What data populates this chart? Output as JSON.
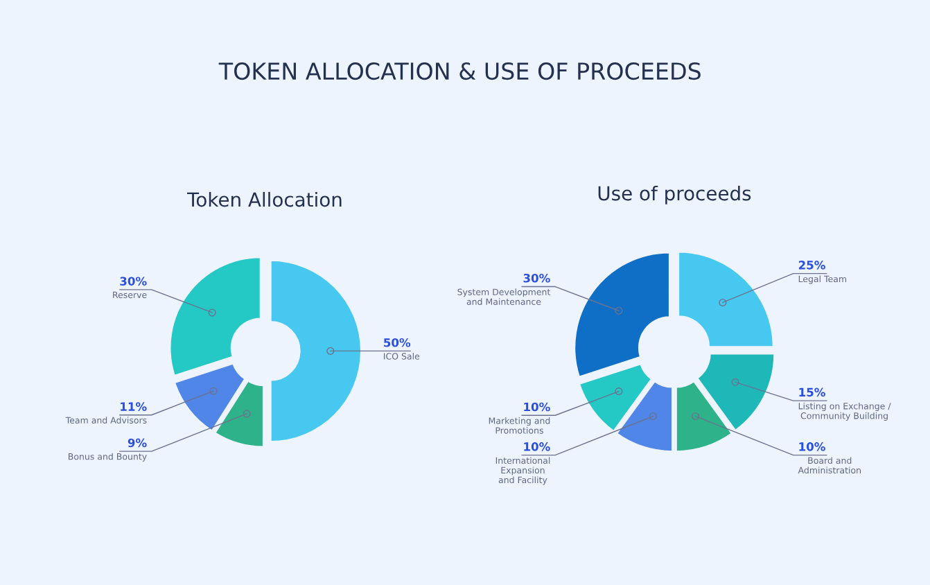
{
  "chart_data": [
    {
      "type": "donut",
      "title": "Token Allocation",
      "annotations": [
        "TOKEN ALLOCATION & USE OF PROCEEDS"
      ],
      "categories": [
        "ICO Sale",
        "Bonus and Bounty",
        "Team and Advisors",
        "Reserve"
      ],
      "values": [
        50,
        9,
        11,
        30
      ],
      "value_labels": [
        "50%",
        "9%",
        "11%",
        "30%"
      ],
      "colors": [
        "#46c8f0",
        "#2db28a",
        "#4f86e8",
        "#24c9c6"
      ]
    },
    {
      "type": "donut",
      "title": "Use of proceeds",
      "categories": [
        "Legal Team",
        "Listing on Exchange /\nCommunity Building",
        "Board and\nAdministration",
        "International\nExpansion\nand Facility",
        "Marketing and\nPromotions",
        "System Development\nand Maintenance"
      ],
      "values": [
        25,
        15,
        10,
        10,
        10,
        30
      ],
      "value_labels": [
        "25%",
        "15%",
        "10%",
        "10%",
        "10%",
        "30%"
      ],
      "colors": [
        "#46c8f0",
        "#1fb8b8",
        "#2db28a",
        "#4f86e8",
        "#24c9c6",
        "#0f6fc6"
      ]
    }
  ]
}
